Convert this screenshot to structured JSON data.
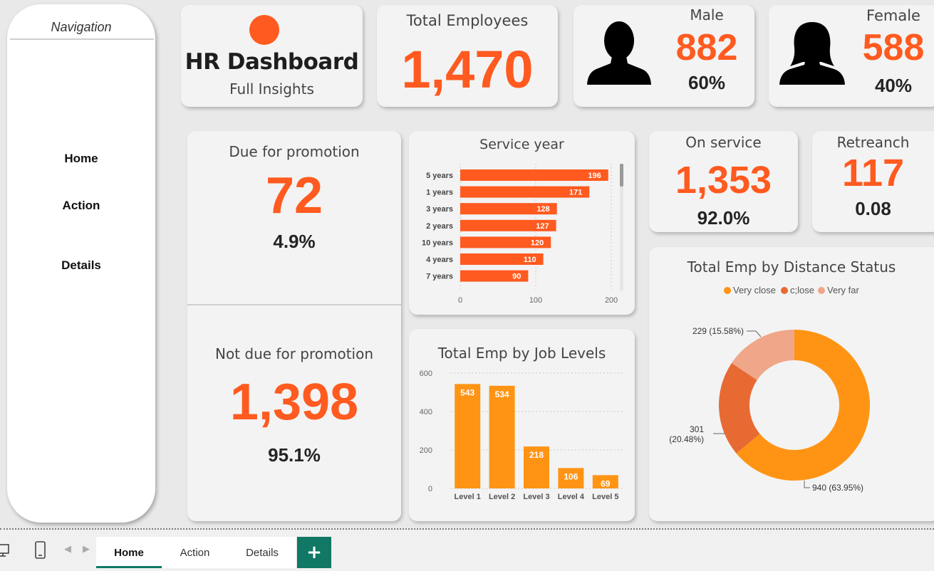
{
  "navigation": {
    "title": "Navigation",
    "items": [
      "Home",
      "Action",
      "Details"
    ]
  },
  "header": {
    "title": "HR Dashboard",
    "subtitle": "Full Insights"
  },
  "total_employees": {
    "label": "Total Employees",
    "value": "1,470"
  },
  "male": {
    "label": "Male",
    "value": "882",
    "pct": "60%"
  },
  "female": {
    "label": "Female",
    "value": "588",
    "pct": "40%"
  },
  "due_promotion": {
    "label": "Due for promotion",
    "value": "72",
    "pct": "4.9%"
  },
  "not_due_promotion": {
    "label": "Not due for promotion",
    "value": "1,398",
    "pct": "95.1%"
  },
  "on_service": {
    "label": "On service",
    "value": "1,353",
    "pct": "92.0%"
  },
  "retrench": {
    "label": "Retreanch",
    "value": "117",
    "pct": "0.08"
  },
  "colors": {
    "accent": "#ff5a1f",
    "bar_orange": "#ff9414",
    "teal": "#117865",
    "close": "#e86a33",
    "very_far": "#f0a688"
  },
  "chart_data": [
    {
      "type": "bar",
      "orientation": "horizontal",
      "title": "Service year",
      "categories": [
        "5 years",
        "1 years",
        "3 years",
        "2 years",
        "10 years",
        "4 years",
        "7 years"
      ],
      "values": [
        196,
        171,
        128,
        127,
        120,
        110,
        90
      ],
      "xlim": [
        0,
        200
      ],
      "xticks": [
        "0",
        "100",
        "200"
      ]
    },
    {
      "type": "bar",
      "title": "Total Emp by Job Levels",
      "categories": [
        "Level 1",
        "Level 2",
        "Level 3",
        "Level 4",
        "Level 5"
      ],
      "values": [
        543,
        534,
        218,
        106,
        69
      ],
      "ylim": [
        0,
        600
      ],
      "yticks": [
        "0",
        "200",
        "400",
        "600"
      ]
    },
    {
      "type": "pie",
      "donut": true,
      "title": "Total Emp by Distance Status",
      "legend": [
        "Very close",
        "c;lose",
        "Very far"
      ],
      "values": [
        940,
        301,
        229
      ],
      "labels": [
        "940 (63.95%)",
        "301 (20.48%)",
        "229 (15.58%)"
      ]
    }
  ],
  "tabs": {
    "items": [
      "Home",
      "Action",
      "Details"
    ],
    "active": "Home",
    "add": "+"
  }
}
